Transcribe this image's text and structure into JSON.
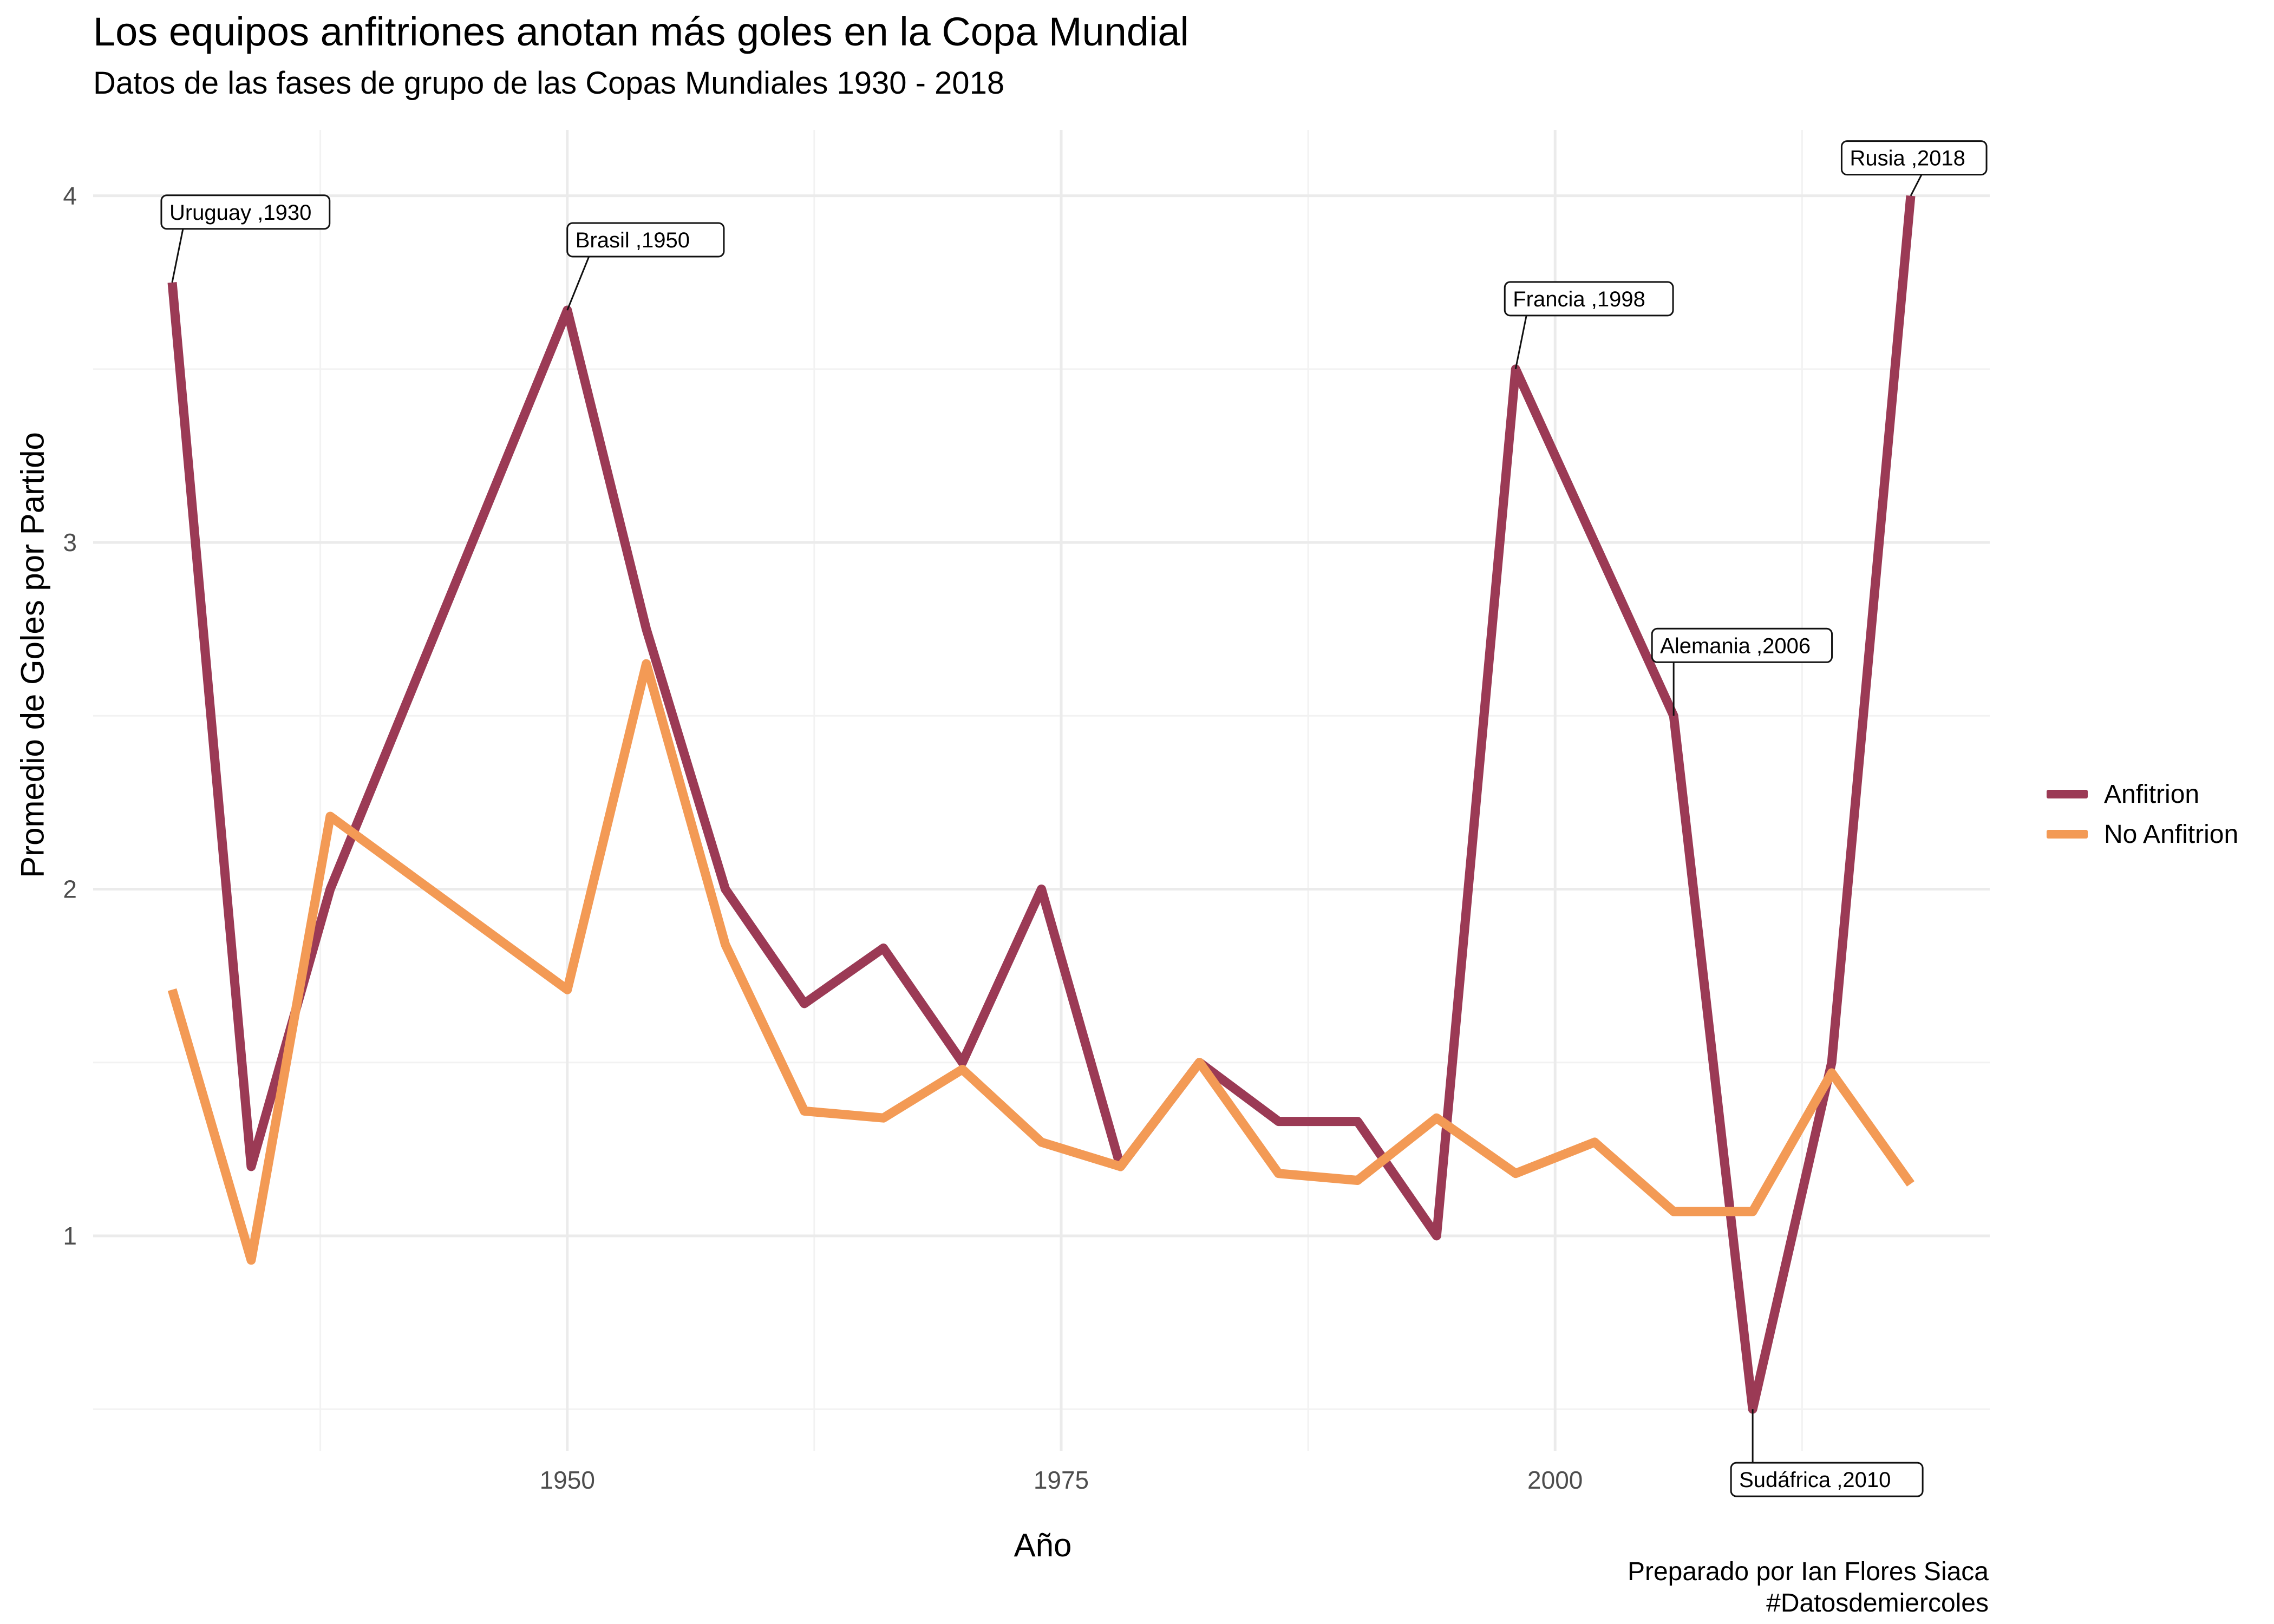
{
  "chart_data": {
    "type": "line",
    "title": "Los equipos anfitriones anotan más goles en la Copa Mundial",
    "subtitle": "Datos de las fases de grupo de las Copas Mundiales 1930 - 2018",
    "xlabel": "Año",
    "ylabel": "Promedio de Goles por Partido",
    "caption_line1": "Preparado por Ian Flores Siaca",
    "caption_line2": "#Datosdemiercoles",
    "xlim": [
      1926,
      2022
    ],
    "ylim": [
      0.38,
      4.19
    ],
    "x_ticks": [
      1950,
      1975,
      2000
    ],
    "y_ticks": [
      1,
      2,
      3,
      4
    ],
    "grid": true,
    "legend_position": "right",
    "series": [
      {
        "name": "Anfitrion",
        "color": "#9B3A55",
        "x": [
          1930,
          1934,
          1938,
          1950,
          1954,
          1958,
          1962,
          1966,
          1970,
          1974,
          1978,
          1982,
          1986,
          1990,
          1994,
          1998,
          2002,
          2006,
          2010,
          2014,
          2018
        ],
        "y": [
          3.75,
          1.2,
          2.0,
          3.67,
          2.75,
          2.0,
          1.67,
          1.83,
          1.5,
          2.0,
          1.2,
          1.5,
          1.33,
          1.33,
          1.0,
          3.5,
          3.0,
          2.5,
          0.5,
          1.5,
          4.0
        ]
      },
      {
        "name": "No Anfitrion",
        "color": "#F39A55",
        "x": [
          1930,
          1934,
          1938,
          1950,
          1954,
          1958,
          1962,
          1966,
          1970,
          1974,
          1978,
          1982,
          1986,
          1990,
          1994,
          1998,
          2002,
          2006,
          2010,
          2014,
          2018
        ],
        "y": [
          1.71,
          0.93,
          2.21,
          1.71,
          2.65,
          1.84,
          1.36,
          1.34,
          1.48,
          1.27,
          1.2,
          1.5,
          1.18,
          1.16,
          1.34,
          1.18,
          1.27,
          1.07,
          1.07,
          1.47,
          1.15
        ]
      }
    ],
    "annotations": [
      {
        "text": "Uruguay ,1930",
        "x": 1930,
        "y": 3.75
      },
      {
        "text": "Brasil ,1950",
        "x": 1950,
        "y": 3.67
      },
      {
        "text": "Francia ,1998",
        "x": 1998,
        "y": 3.5
      },
      {
        "text": "Alemania ,2006",
        "x": 2006,
        "y": 2.5
      },
      {
        "text": "Sudáfrica ,2010",
        "x": 2010,
        "y": 0.5
      },
      {
        "text": "Rusia ,2018",
        "x": 2018,
        "y": 4.0
      }
    ]
  }
}
